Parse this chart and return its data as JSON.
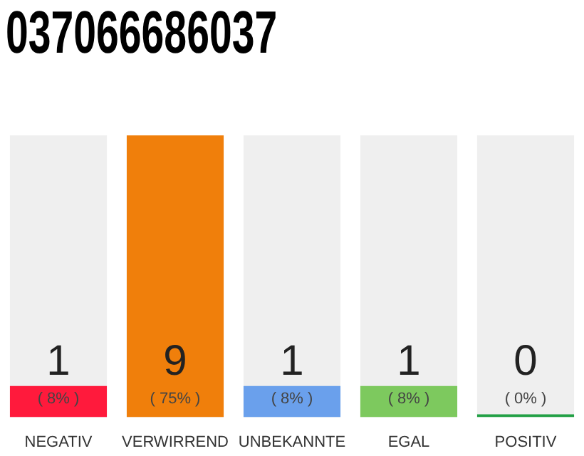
{
  "chart_data": {
    "type": "bar",
    "title": "037066686037",
    "categories": [
      "NEGATIV",
      "VERWIRREND",
      "UNBEKANNTE",
      "EGAL",
      "POSITIV"
    ],
    "values": [
      1,
      9,
      1,
      1,
      0
    ],
    "colors": [
      "#ff1a3c",
      "#f07f0b",
      "#6aa0ec",
      "#7dc95e",
      "#22a045"
    ],
    "data_labels": true,
    "annotations": [
      "( 8% )",
      "( 75% )",
      "( 8% )",
      "( 8% )",
      "( 0% )"
    ],
    "grid": false,
    "legend": false
  }
}
